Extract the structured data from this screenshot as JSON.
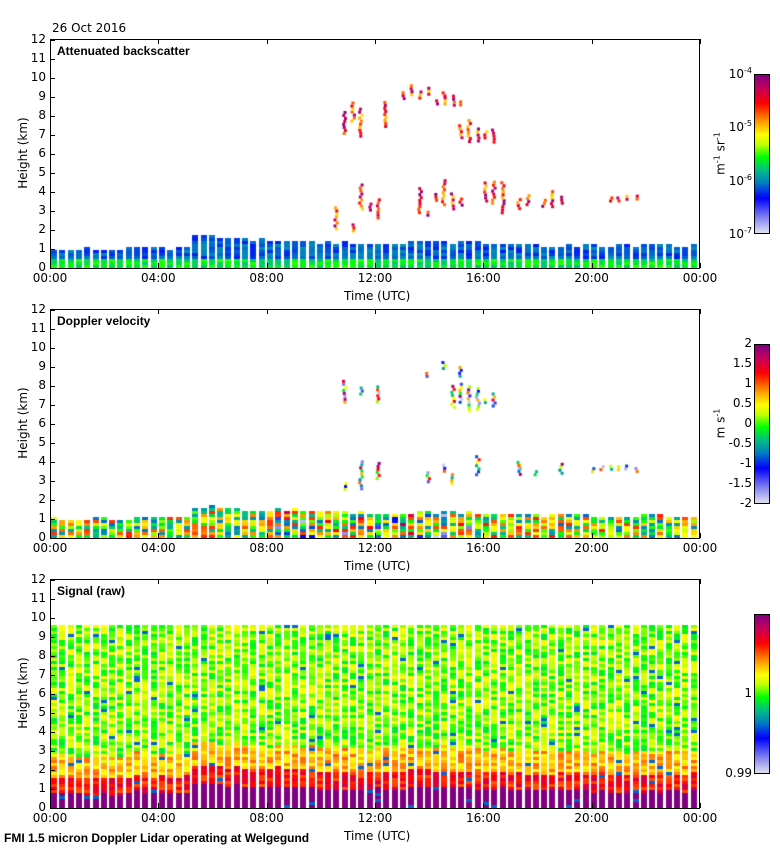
{
  "date": "26 Oct 2016",
  "footer": "FMI 1.5 micron Doppler Lidar operating at Welgegund",
  "chart_data": [
    {
      "type": "heatmap",
      "title": "Attenuated backscatter",
      "xlabel": "Time (UTC)",
      "ylabel": "Height (km)",
      "xlim": [
        "00:00",
        "24:00"
      ],
      "ylim": [
        0,
        12
      ],
      "yticks": [
        "0",
        "1",
        "2",
        "3",
        "4",
        "5",
        "6",
        "7",
        "8",
        "9",
        "10",
        "11",
        "12"
      ],
      "xticks": [
        "00:00",
        "04:00",
        "08:00",
        "12:00",
        "16:00",
        "20:00",
        "00:00"
      ],
      "colorbar": {
        "unit": "m-1 sr-1",
        "scale": "log",
        "range": [
          1e-07,
          0.0001
        ],
        "ticks": [
          "10-4",
          "10-5",
          "10-6",
          "10-7"
        ]
      },
      "boundary_layer_top_km": [
        0.9,
        0.9,
        0.9,
        1.0,
        1.0,
        1.6,
        1.5,
        1.4,
        1.4,
        1.3,
        1.3,
        1.2,
        1.2,
        1.3,
        1.3,
        1.3,
        1.2,
        1.2,
        1.1,
        1.1,
        1.1,
        1.1,
        1.1,
        1.1
      ],
      "cloud_features": [
        {
          "time_h": 11.6,
          "base_km": 6.8,
          "top_km": 8.6
        },
        {
          "time_h": 13.6,
          "base_km": 8.8,
          "top_km": 9.5
        },
        {
          "time_h": 14.5,
          "base_km": 8.4,
          "top_km": 8.9
        },
        {
          "time_h": 15.5,
          "base_km": 6.5,
          "top_km": 7.9
        },
        {
          "time_h": 11.2,
          "base_km": 1.8,
          "top_km": 4.5
        },
        {
          "time_h": 14.2,
          "base_km": 2.5,
          "top_km": 4.7
        },
        {
          "time_h": 16.5,
          "base_km": 2.8,
          "top_km": 4.4
        },
        {
          "time_h": 18.0,
          "base_km": 3.0,
          "top_km": 3.8
        },
        {
          "time_h": 20.7,
          "base_km": 3.4,
          "top_km": 3.7
        }
      ]
    },
    {
      "type": "heatmap",
      "title": "Doppler velocity",
      "xlabel": "Time (UTC)",
      "ylabel": "Height (km)",
      "xlim": [
        "00:00",
        "24:00"
      ],
      "ylim": [
        0,
        12
      ],
      "yticks": [
        "0",
        "1",
        "2",
        "3",
        "4",
        "5",
        "6",
        "7",
        "8",
        "9",
        "10",
        "11",
        "12"
      ],
      "xticks": [
        "00:00",
        "04:00",
        "08:00",
        "12:00",
        "16:00",
        "20:00",
        "00:00"
      ],
      "colorbar": {
        "unit": "m s-1",
        "scale": "linear",
        "range": [
          -2,
          2
        ],
        "ticks": [
          "2",
          "1.5",
          "1",
          "0.5",
          "0",
          "-0.5",
          "-1",
          "-1.5",
          "-2"
        ]
      }
    },
    {
      "type": "heatmap",
      "title": "Signal (raw)",
      "xlabel": "Time (UTC)",
      "ylabel": "Height (km)",
      "xlim": [
        "00:00",
        "24:00"
      ],
      "ylim": [
        0,
        12
      ],
      "data_top_km": 9.5,
      "yticks": [
        "0",
        "1",
        "2",
        "3",
        "4",
        "5",
        "6",
        "7",
        "8",
        "9",
        "10",
        "11",
        "12"
      ],
      "xticks": [
        "00:00",
        "04:00",
        "08:00",
        "12:00",
        "16:00",
        "20:00",
        "00:00"
      ],
      "colorbar": {
        "unit": "",
        "scale": "linear",
        "range": [
          0.99,
          1.01
        ],
        "ticks": [
          "1",
          "0.99"
        ]
      }
    }
  ]
}
